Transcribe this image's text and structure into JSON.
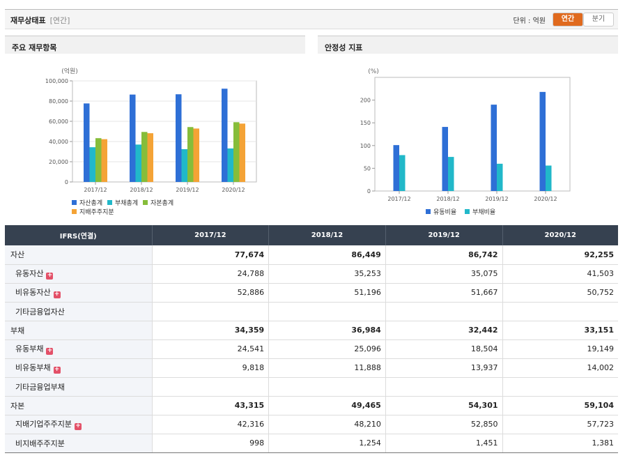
{
  "header": {
    "title": "재무상태표",
    "subtitle": "[연간]",
    "unit_label": "단위 : 억원",
    "annual_btn": "연간",
    "quarter_btn": "분기"
  },
  "panels": {
    "left_title": "주요 재무항목",
    "right_title": "안정성 지표"
  },
  "chart_data": [
    {
      "type": "bar",
      "ylabel": "(억원)",
      "ylim": [
        0,
        100000
      ],
      "yticks": [
        "0",
        "20,000",
        "40,000",
        "60,000",
        "80,000",
        "100,000"
      ],
      "categories": [
        "2017/12",
        "2018/12",
        "2019/12",
        "2020/12"
      ],
      "series": [
        {
          "name": "자산총계",
          "color": "#2e6fd6",
          "values": [
            77674,
            86449,
            86742,
            92255
          ]
        },
        {
          "name": "부채총계",
          "color": "#21b8c9",
          "values": [
            34359,
            36984,
            32442,
            33151
          ]
        },
        {
          "name": "자본총계",
          "color": "#86bd3a",
          "values": [
            43315,
            49465,
            54301,
            59104
          ]
        },
        {
          "name": "지배주주지분",
          "color": "#f4a336",
          "values": [
            42316,
            48210,
            52850,
            57723
          ]
        }
      ],
      "grid": true,
      "legend": "bottom"
    },
    {
      "type": "bar",
      "ylabel": "(%)",
      "ylim": [
        0,
        250
      ],
      "yticks": [
        "0",
        "50",
        "100",
        "150",
        "200"
      ],
      "categories": [
        "2017/12",
        "2018/12",
        "2019/12",
        "2020/12"
      ],
      "series": [
        {
          "name": "유동비율",
          "color": "#2e6fd6",
          "values": [
            101,
            141,
            190,
            218
          ]
        },
        {
          "name": "부채비율",
          "color": "#21b8c9",
          "values": [
            79,
            75,
            60,
            56
          ]
        }
      ],
      "grid": false,
      "legend": "bottom"
    }
  ],
  "table": {
    "header": [
      "IFRS(연결)",
      "2017/12",
      "2018/12",
      "2019/12",
      "2020/12"
    ],
    "rows": [
      {
        "label": "자산",
        "values": [
          "77,674",
          "86,449",
          "86,742",
          "92,255"
        ],
        "bold": true,
        "child": false,
        "plus": false
      },
      {
        "label": "유동자산",
        "values": [
          "24,788",
          "35,253",
          "35,075",
          "41,503"
        ],
        "bold": false,
        "child": true,
        "plus": true
      },
      {
        "label": "비유동자산",
        "values": [
          "52,886",
          "51,196",
          "51,667",
          "50,752"
        ],
        "bold": false,
        "child": true,
        "plus": true
      },
      {
        "label": "기타금융업자산",
        "values": [
          "",
          "",
          "",
          ""
        ],
        "bold": false,
        "child": true,
        "plus": false
      },
      {
        "label": "부채",
        "values": [
          "34,359",
          "36,984",
          "32,442",
          "33,151"
        ],
        "bold": true,
        "child": false,
        "plus": false
      },
      {
        "label": "유동부채",
        "values": [
          "24,541",
          "25,096",
          "18,504",
          "19,149"
        ],
        "bold": false,
        "child": true,
        "plus": true
      },
      {
        "label": "비유동부채",
        "values": [
          "9,818",
          "11,888",
          "13,937",
          "14,002"
        ],
        "bold": false,
        "child": true,
        "plus": true
      },
      {
        "label": "기타금융업부채",
        "values": [
          "",
          "",
          "",
          ""
        ],
        "bold": false,
        "child": true,
        "plus": false
      },
      {
        "label": "자본",
        "values": [
          "43,315",
          "49,465",
          "54,301",
          "59,104"
        ],
        "bold": true,
        "child": false,
        "plus": false
      },
      {
        "label": "지배기업주주지분",
        "values": [
          "42,316",
          "48,210",
          "52,850",
          "57,723"
        ],
        "bold": false,
        "child": true,
        "plus": true
      },
      {
        "label": "비지배주주지분",
        "values": [
          "998",
          "1,254",
          "1,451",
          "1,381"
        ],
        "bold": false,
        "child": true,
        "plus": false
      }
    ]
  }
}
